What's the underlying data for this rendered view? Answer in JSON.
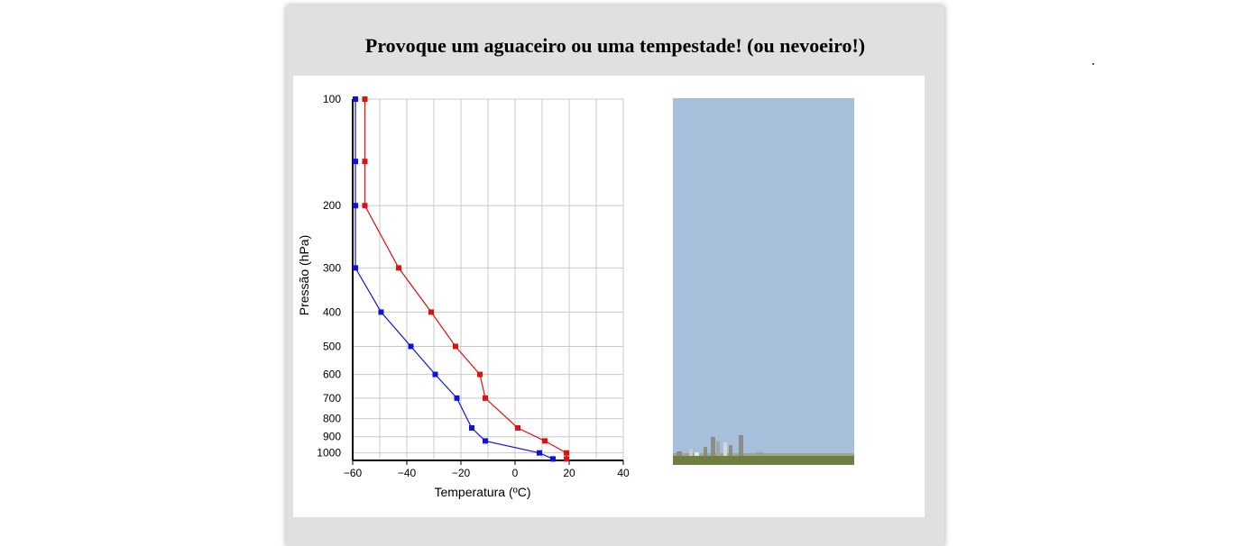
{
  "page": {
    "title": "Provoque um aguaceiro ou uma tempestade! (ou nevoeiro!)"
  },
  "chart_data": {
    "type": "line",
    "title": "",
    "xlabel": "Temperatura (ºC)",
    "ylabel": "Pressão (hPa)",
    "xlim": [
      -60,
      40
    ],
    "ylim": [
      1050,
      100
    ],
    "yscale": "log",
    "grid": true,
    "x_ticks": [
      -60,
      -40,
      -20,
      0,
      20,
      40
    ],
    "x_tick_labels": [
      "−60",
      "−40",
      "−20",
      "0",
      "20",
      "40"
    ],
    "y_ticks": [
      100,
      200,
      300,
      400,
      500,
      600,
      700,
      800,
      900,
      1000
    ],
    "y_tick_labels": [
      "100",
      "200",
      "300",
      "400",
      "500",
      "600",
      "700",
      "800",
      "900",
      "1000"
    ],
    "series": [
      {
        "color": "#e01010",
        "x": [
          -55.5,
          -55.5,
          -55.5,
          -43,
          -31,
          -22,
          -13,
          -11,
          1,
          11,
          19,
          19
        ],
        "y": [
          100,
          150,
          200,
          300,
          400,
          500,
          600,
          700,
          850,
          925,
          1000,
          1040
        ]
      },
      {
        "color": "#1010e0",
        "x": [
          -59,
          -59,
          -59,
          -59,
          -49.5,
          -38.5,
          -29.5,
          -21.5,
          -16,
          -11,
          9,
          14
        ],
        "y": [
          100,
          150,
          200,
          300,
          400,
          500,
          600,
          700,
          850,
          925,
          1000,
          1040
        ]
      }
    ]
  },
  "scene": {
    "sky_color": "#a6bfda",
    "ground_color": "#6e7f3f"
  }
}
